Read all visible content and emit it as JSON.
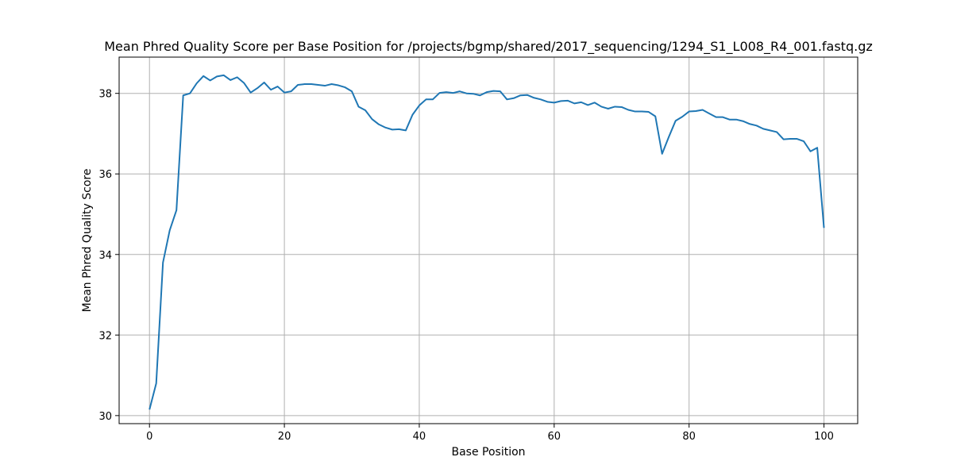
{
  "chart_data": {
    "type": "line",
    "title": "Mean Phred Quality Score per Base Position for /projects/bgmp/shared/2017_sequencing/1294_S1_L008_R4_001.fastq.gz",
    "xlabel": "Base Position",
    "ylabel": "Mean Phred Quality Score",
    "xlim": [
      -4.5,
      105
    ],
    "ylim": [
      29.8,
      38.9
    ],
    "xticks": [
      0,
      20,
      40,
      60,
      80,
      100
    ],
    "yticks": [
      30,
      32,
      34,
      36,
      38
    ],
    "grid": true,
    "line_color": "#1f77b4",
    "x": [
      0,
      1,
      2,
      3,
      4,
      5,
      6,
      7,
      8,
      9,
      10,
      11,
      12,
      13,
      14,
      15,
      16,
      17,
      18,
      19,
      20,
      21,
      22,
      23,
      24,
      25,
      26,
      27,
      28,
      29,
      30,
      31,
      32,
      33,
      34,
      35,
      36,
      37,
      38,
      39,
      40,
      41,
      42,
      43,
      44,
      45,
      46,
      47,
      48,
      49,
      50,
      51,
      52,
      53,
      54,
      55,
      56,
      57,
      58,
      59,
      60,
      61,
      62,
      63,
      64,
      65,
      66,
      67,
      68,
      69,
      70,
      71,
      72,
      73,
      74,
      75,
      76,
      77,
      78,
      79,
      80,
      81,
      82,
      83,
      84,
      85,
      86,
      87,
      88,
      89,
      90,
      91,
      92,
      93,
      94,
      95,
      96,
      97,
      98,
      99,
      100
    ],
    "values": [
      30.15,
      30.8,
      33.8,
      34.6,
      35.1,
      37.95,
      38.0,
      38.25,
      38.43,
      38.32,
      38.42,
      38.45,
      38.33,
      38.4,
      38.26,
      38.02,
      38.13,
      38.27,
      38.09,
      38.17,
      38.02,
      38.05,
      38.21,
      38.23,
      38.23,
      38.21,
      38.19,
      38.23,
      38.2,
      38.15,
      38.05,
      37.67,
      37.58,
      37.36,
      37.23,
      37.15,
      37.1,
      37.11,
      37.08,
      37.47,
      37.7,
      37.85,
      37.85,
      38.01,
      38.03,
      38.01,
      38.05,
      38.0,
      37.99,
      37.95,
      38.03,
      38.06,
      38.05,
      37.85,
      37.88,
      37.95,
      37.96,
      37.89,
      37.85,
      37.79,
      37.77,
      37.81,
      37.82,
      37.75,
      37.78,
      37.71,
      37.77,
      37.67,
      37.62,
      37.67,
      37.66,
      37.59,
      37.55,
      37.55,
      37.54,
      37.43,
      36.5,
      36.92,
      37.32,
      37.42,
      37.55,
      37.56,
      37.59,
      37.5,
      37.41,
      37.41,
      37.35,
      37.35,
      37.31,
      37.24,
      37.2,
      37.12,
      37.08,
      37.04,
      36.86,
      36.87,
      36.87,
      36.81,
      36.56,
      36.65,
      34.66
    ]
  }
}
